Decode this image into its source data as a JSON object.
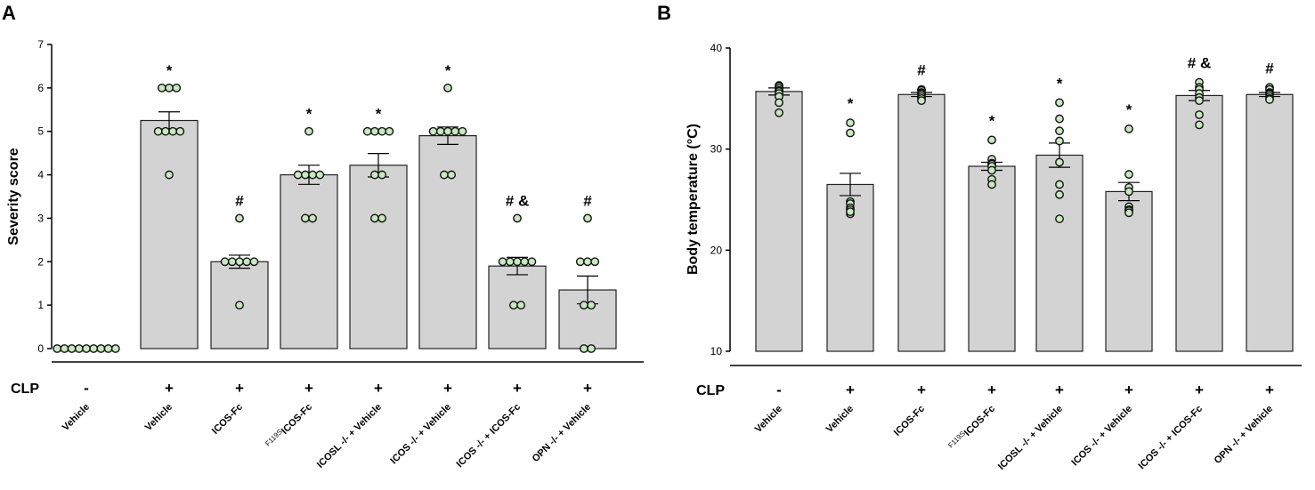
{
  "chart_data": [
    {
      "panel": "A",
      "type": "bar",
      "ylabel": "Severity score",
      "ylim": [
        0,
        7
      ],
      "yticks": [
        0,
        1,
        2,
        3,
        4,
        5,
        6,
        7
      ],
      "condition_label": "CLP",
      "categories": [
        {
          "name": "Vehicle",
          "sup": "",
          "clp": "-"
        },
        {
          "name": "Vehicle",
          "sup": "",
          "clp": "+"
        },
        {
          "name": "ICOS-Fc",
          "sup": "",
          "clp": "+"
        },
        {
          "name": "ICOS-Fc",
          "sup": "F119S",
          "clp": "+"
        },
        {
          "name": "ICOSL -/- + Vehicle",
          "sup": "",
          "clp": "+"
        },
        {
          "name": "ICOS -/- + Vehicle",
          "sup": "",
          "clp": "+"
        },
        {
          "name": "ICOS -/- + ICOS-Fc",
          "sup": "",
          "clp": "+"
        },
        {
          "name": "OPN -/- + Vehicle",
          "sup": "",
          "clp": "+"
        }
      ],
      "means": [
        0,
        5.25,
        2.0,
        4.0,
        4.22,
        4.9,
        1.9,
        1.35
      ],
      "sem": [
        0,
        0.2,
        0.15,
        0.22,
        0.27,
        0.2,
        0.2,
        0.32
      ],
      "points": [
        [
          0,
          0,
          0,
          0,
          0,
          0,
          0,
          0,
          0
        ],
        [
          6,
          6,
          6,
          5,
          5,
          5,
          5,
          4
        ],
        [
          3,
          2,
          2,
          2,
          2,
          2,
          1
        ],
        [
          5,
          4,
          4,
          4,
          4,
          3,
          3
        ],
        [
          5,
          5,
          5,
          5,
          4,
          4,
          3,
          3
        ],
        [
          6,
          5,
          5,
          5,
          5,
          5,
          4,
          4
        ],
        [
          3,
          2,
          2,
          2,
          2,
          2,
          1,
          1
        ],
        [
          3,
          2,
          2,
          2,
          1,
          1,
          0,
          0
        ]
      ],
      "annotations": [
        "",
        "*",
        "#",
        "*",
        "*",
        "*",
        "# &",
        "#"
      ]
    },
    {
      "panel": "B",
      "type": "bar",
      "ylabel": "Body temperature (°C)",
      "ylim": [
        10,
        40
      ],
      "yticks": [
        10,
        20,
        30,
        40
      ],
      "condition_label": "CLP",
      "categories": [
        {
          "name": "Vehicle",
          "sup": "",
          "clp": "-"
        },
        {
          "name": "Vehicle",
          "sup": "",
          "clp": "+"
        },
        {
          "name": "ICOS-Fc",
          "sup": "",
          "clp": "+"
        },
        {
          "name": "ICOS-Fc",
          "sup": "F119S",
          "clp": "+"
        },
        {
          "name": "ICOSL -/- + Vehicle",
          "sup": "",
          "clp": "+"
        },
        {
          "name": "ICOS -/- + Vehicle",
          "sup": "",
          "clp": "+"
        },
        {
          "name": "ICOS -/- + ICOS-Fc",
          "sup": "",
          "clp": "+"
        },
        {
          "name": "OPN -/- + Vehicle",
          "sup": "",
          "clp": "+"
        }
      ],
      "means": [
        35.7,
        26.5,
        35.4,
        28.3,
        29.4,
        25.8,
        35.3,
        35.4
      ],
      "sem": [
        0.35,
        1.1,
        0.2,
        0.4,
        1.2,
        0.9,
        0.5,
        0.2
      ],
      "points": [
        [
          36.3,
          36.2,
          36.0,
          35.8,
          35.7,
          35.5,
          35.2,
          34.6,
          33.6
        ],
        [
          32.6,
          31.6,
          24.8,
          24.6,
          24.2,
          24.0,
          23.6,
          23.8
        ],
        [
          35.9,
          35.8,
          35.6,
          35.5,
          35.4,
          35.2,
          35.0,
          34.8
        ],
        [
          30.9,
          29.0,
          28.6,
          28.5,
          28.3,
          27.9,
          27.0,
          26.5
        ],
        [
          34.6,
          33.0,
          31.8,
          30.8,
          28.7,
          26.5,
          25.5,
          23.1
        ],
        [
          32.0,
          27.5,
          26.2,
          25.8,
          24.3,
          24.0,
          23.9,
          23.7
        ],
        [
          36.6,
          36.1,
          35.9,
          35.5,
          35.1,
          34.8,
          33.4,
          32.4
        ],
        [
          36.1,
          35.9,
          35.6,
          35.5,
          35.4,
          35.2,
          35.0,
          34.9
        ]
      ],
      "annotations": [
        "",
        "*",
        "#",
        "*",
        "*",
        "*",
        "# &",
        "#"
      ]
    }
  ],
  "colors": {
    "bar_fill": "#d3d3d3",
    "bar_stroke": "#222222",
    "point_fill": "#c8e8c0",
    "point_stroke": "#111111",
    "axis": "#000000"
  }
}
